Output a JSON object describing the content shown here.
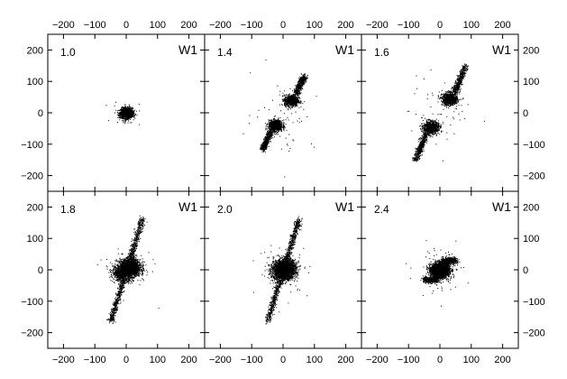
{
  "chart_data": {
    "type": "scatter",
    "layout": "2x3 grid with shared axes",
    "x_ticks": [
      -200,
      -100,
      0,
      100,
      200
    ],
    "y_ticks": [
      -200,
      -100,
      0,
      100,
      200
    ],
    "xlim": [
      -250,
      250
    ],
    "ylim": [
      -250,
      250
    ],
    "colors": {
      "points": "#000000",
      "frame": "#000000",
      "background": "#ffffff"
    },
    "panels": [
      {
        "time_label": "1.0",
        "model_label": "W1",
        "morphology": "compact-core",
        "core_radius": 18,
        "bridge_offset": [
          0,
          0
        ],
        "arm_extent": 0,
        "halo_radius": 0
      },
      {
        "time_label": "1.4",
        "model_label": "W1",
        "morphology": "two-cores-tidal-arms",
        "core_radius": 22,
        "bridge_offset": [
          25,
          40
        ],
        "arm_extent": 120,
        "halo_radius": 0
      },
      {
        "time_label": "1.6",
        "model_label": "W1",
        "morphology": "two-cores-tidal-arms",
        "core_radius": 24,
        "bridge_offset": [
          30,
          45
        ],
        "arm_extent": 160,
        "halo_radius": 0
      },
      {
        "time_label": "1.8",
        "model_label": "W1",
        "morphology": "merging-cores-long-arms",
        "core_radius": 30,
        "bridge_offset": [
          12,
          8
        ],
        "arm_extent": 240,
        "halo_radius": 0
      },
      {
        "time_label": "2.0",
        "model_label": "W1",
        "morphology": "merged-core-long-arms",
        "core_radius": 32,
        "bridge_offset": [
          5,
          5
        ],
        "arm_extent": 240,
        "halo_radius": 0
      },
      {
        "time_label": "2.4",
        "model_label": "W1",
        "morphology": "merged-core-diffuse-halo",
        "core_radius": 26,
        "bridge_offset": [
          0,
          0
        ],
        "arm_extent": 0,
        "halo_radius": 150
      }
    ]
  }
}
